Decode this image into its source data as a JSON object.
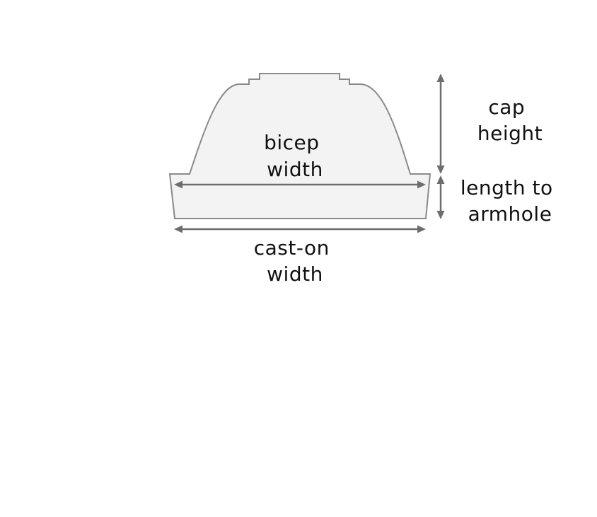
{
  "labels": {
    "bicep_width": [
      "bicep",
      "width"
    ],
    "cast_on_width": [
      "cast-on",
      "width"
    ],
    "cap_height": [
      "cap",
      "height"
    ],
    "length_to_armhole": [
      "length to",
      "armhole"
    ]
  },
  "colors": {
    "shape_fill": "#f3f3f3",
    "shape_stroke": "#8a8a8a",
    "arrow": "#6d6d6d",
    "text": "#111111"
  }
}
